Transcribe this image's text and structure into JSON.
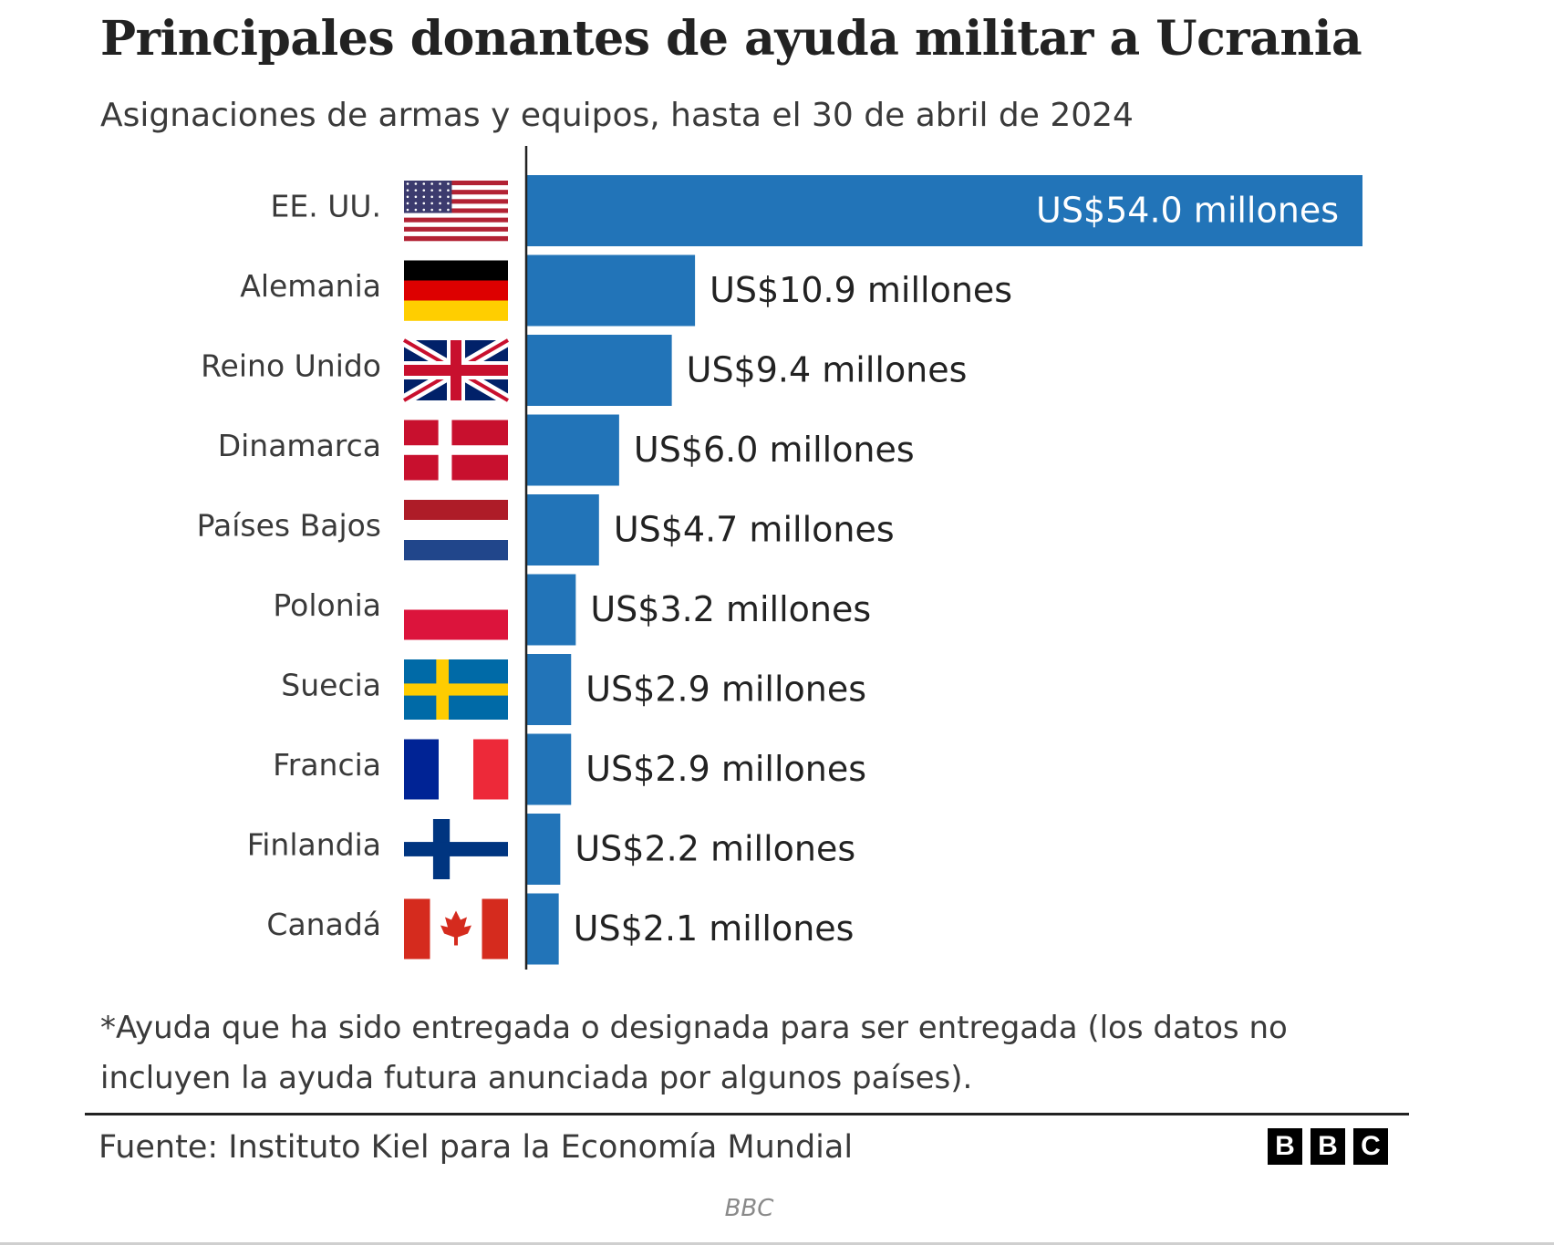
{
  "title": "Principales donantes de ayuda militar a Ucrania",
  "subtitle": "Asignaciones de armas y equipos, hasta el 30 de abril de 2024",
  "footnote": "*Ayuda que ha sido entregada o designada para ser entregada (los datos no incluyen la ayuda futura anunciada por algunos países).",
  "source": "Fuente: Instituto Kiel para la Economía Mundial",
  "logo_letters": [
    "B",
    "B",
    "C"
  ],
  "credit": "BBC",
  "colors": {
    "bar": "#2274b8",
    "text": "#222222",
    "muted": "#3a3a3a",
    "label_inside": "#ffffff"
  },
  "chart_data": {
    "type": "bar",
    "orientation": "horizontal",
    "title": "Principales donantes de ayuda militar a Ucrania",
    "unit": "US$ millones",
    "categories": [
      "EE. UU.",
      "Alemania",
      "Reino Unido",
      "Dinamarca",
      "Países Bajos",
      "Polonia",
      "Suecia",
      "Francia",
      "Finlandia",
      "Canadá"
    ],
    "values": [
      54.0,
      10.9,
      9.4,
      6.0,
      4.7,
      3.2,
      2.9,
      2.9,
      2.2,
      2.1
    ],
    "value_labels": [
      "US$54.0 millones",
      "US$10.9 millones",
      "US$9.4 millones",
      "US$6.0 millones",
      "US$4.7 millones",
      "US$3.2 millones",
      "US$2.9 millones",
      "US$2.9 millones",
      "US$2.2 millones",
      "US$2.1 millones"
    ],
    "flags": [
      "us-flag-icon",
      "germany-flag-icon",
      "uk-flag-icon",
      "denmark-flag-icon",
      "netherlands-flag-icon",
      "poland-flag-icon",
      "sweden-flag-icon",
      "france-flag-icon",
      "finland-flag-icon",
      "canada-flag-icon"
    ],
    "xlim": [
      0,
      54.0
    ],
    "xlabel": "",
    "ylabel": "",
    "grid": false,
    "legend": "none"
  }
}
